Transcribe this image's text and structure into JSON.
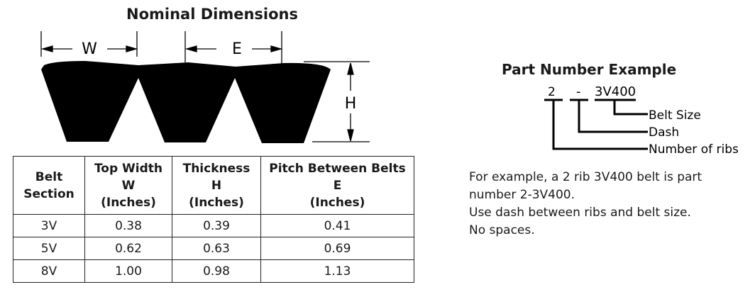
{
  "diagram": {
    "title": "Nominal Dimensions",
    "labels": {
      "w": "W",
      "e": "E",
      "h": "H"
    }
  },
  "table": {
    "headers": [
      [
        "Belt",
        "Section"
      ],
      [
        "Top Width",
        "W",
        "(Inches)"
      ],
      [
        "Thickness",
        "H",
        "(Inches)"
      ],
      [
        "Pitch Between Belts",
        "E",
        "(Inches)"
      ]
    ],
    "rows": [
      [
        "3V",
        "0.38",
        "0.39",
        "0.41"
      ],
      [
        "5V",
        "0.62",
        "0.63",
        "0.69"
      ],
      [
        "8V",
        "1.00",
        "0.98",
        "1.13"
      ]
    ]
  },
  "part_number": {
    "title": "Part Number Example",
    "ribs": "2",
    "dash": "-",
    "size": "3V400",
    "labels": {
      "size": "Belt Size",
      "dash": "Dash",
      "ribs": "Number of ribs"
    }
  },
  "explanation": [
    "For example, a 2 rib 3V400 belt is part",
    "number 2-3V400.",
    "Use dash between ribs and belt size.",
    "No spaces."
  ]
}
